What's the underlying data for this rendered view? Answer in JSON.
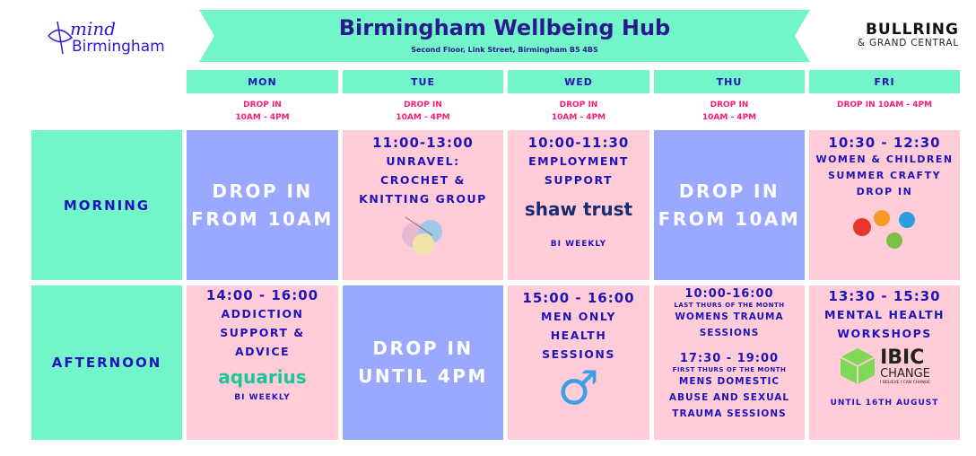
{
  "header": {
    "title": "Birmingham Wellbeing Hub",
    "address": "Second Floor, Link Street, Birmingham B5 4BS",
    "left_logo": {
      "mark": "mind",
      "text": "Birmingham"
    },
    "right_logo": {
      "line1": "BULLRING",
      "line2": "& GRAND CENTRAL"
    }
  },
  "colors": {
    "mint": "#72f5c8",
    "pink": "#ffccd8",
    "periwinkle": "#9ba8ff",
    "text": "#1f14b8",
    "accent": "#ff1a7a"
  },
  "days": [
    {
      "label": "MON",
      "sub": [
        "DROP IN",
        "10AM - 4PM"
      ]
    },
    {
      "label": "TUE",
      "sub": [
        "DROP IN",
        "10AM - 4PM"
      ]
    },
    {
      "label": "WED",
      "sub": [
        "DROP IN",
        "10AM - 4PM"
      ]
    },
    {
      "label": "THU",
      "sub": [
        "DROP IN",
        "10AM - 4PM"
      ]
    },
    {
      "label": "FRI",
      "sub": [
        "DROP IN 10AM - 4PM",
        ""
      ]
    }
  ],
  "rows": {
    "morning": "MORNING",
    "afternoon": "AFTERNOON"
  },
  "morning": {
    "mon": [
      "DROP IN",
      "FROM 10AM"
    ],
    "tue": {
      "time": "11:00-13:00",
      "lines": [
        "UNRAVEL:",
        "CROCHET &",
        "KNITTING GROUP"
      ],
      "image": "yarn-balls"
    },
    "wed": {
      "time": "10:00-11:30",
      "lines": [
        "EMPLOYMENT",
        "SUPPORT"
      ],
      "logo": "shaw trust",
      "note": "BI WEEKLY"
    },
    "thu": [
      "DROP IN",
      "FROM 10AM"
    ],
    "fri": {
      "time": "10:30 - 12:30",
      "lines": [
        "WOMEN & CHILDREN",
        "SUMMER CRAFTY",
        "DROP IN"
      ],
      "image": "painted-hands"
    }
  },
  "afternoon": {
    "mon": {
      "time": "14:00 - 16:00",
      "lines": [
        "ADDICTION",
        "SUPPORT &",
        "ADVICE"
      ],
      "logo": "aquarius",
      "note": "BI WEEKLY"
    },
    "tue": [
      "DROP IN",
      "UNTIL 4PM"
    ],
    "wed": {
      "time": "15:00 - 16:00",
      "lines": [
        "MEN ONLY",
        "HEALTH",
        "SESSIONS"
      ],
      "icon": "male-symbol"
    },
    "thu": {
      "time1": "10:00-16:00",
      "note1": "LAST THURS OF THE MONTH",
      "lines1": [
        "WOMENS TRAUMA",
        "SESSIONS"
      ],
      "time2": "17:30 - 19:00",
      "note2": "FIRST THURS OF THE MONTH",
      "lines2": [
        "MENS DOMESTIC",
        "ABUSE AND SEXUAL",
        "TRAUMA SESSIONS"
      ]
    },
    "fri": {
      "time": "13:30 - 15:30",
      "lines": [
        "MENTAL HEALTH",
        "WORKSHOPS"
      ],
      "logo": {
        "l1": "IBIC",
        "l2": "CHANGE",
        "l3": "I BELIEVE I CAN CHANGE"
      },
      "note": "UNTIL 16TH AUGUST"
    }
  }
}
